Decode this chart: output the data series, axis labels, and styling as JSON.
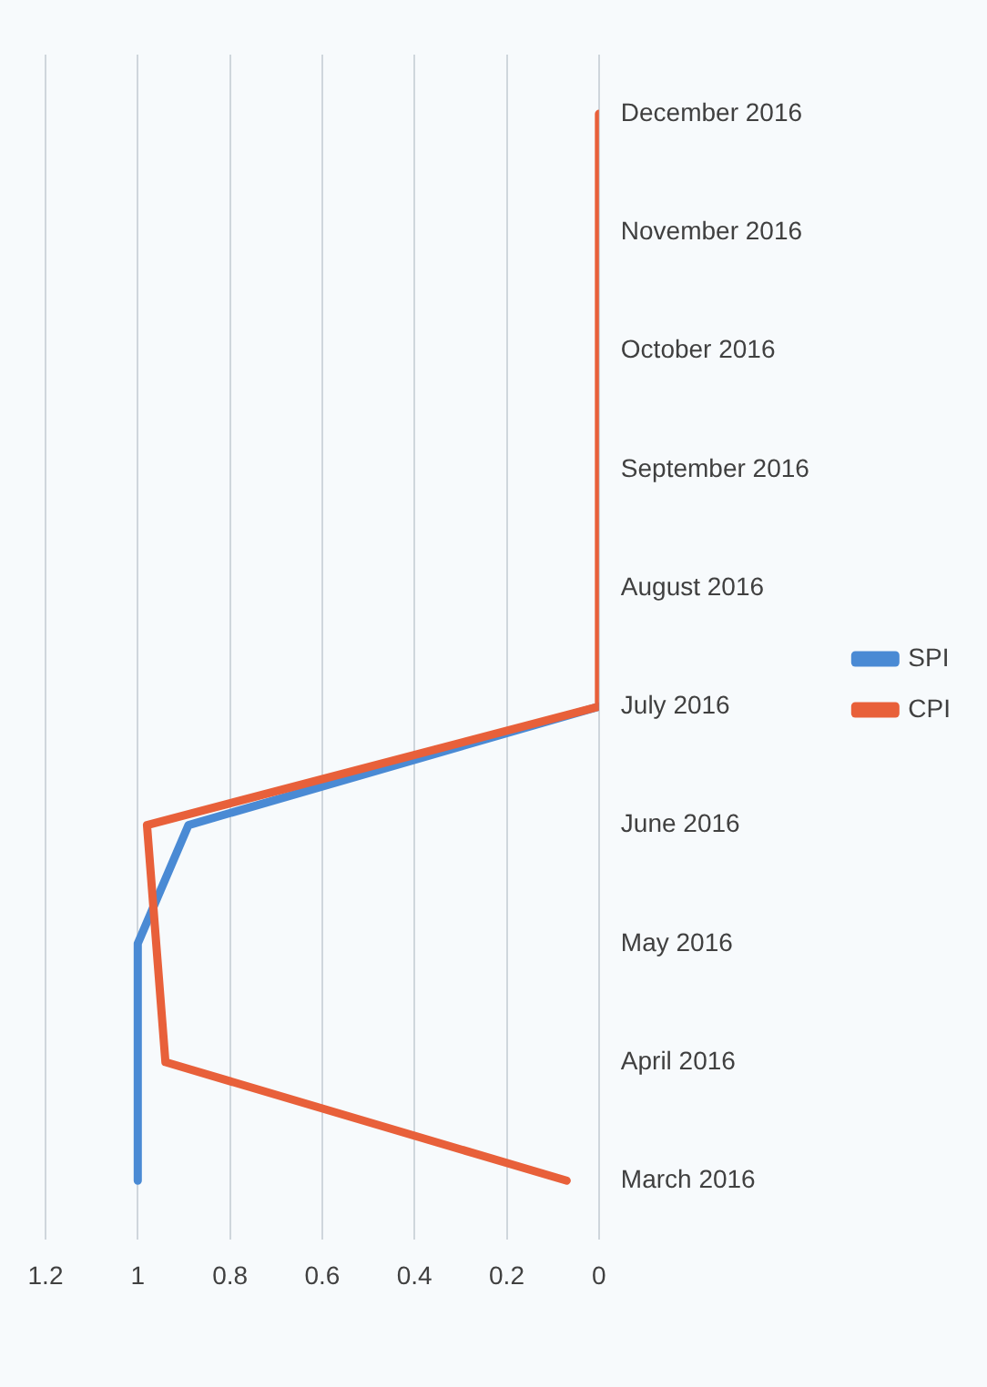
{
  "chart_data": {
    "type": "line",
    "orientation": "horizontal",
    "categories": [
      "December 2016",
      "November 2016",
      "October 2016",
      "September 2016",
      "August 2016",
      "July 2016",
      "June 2016",
      "May 2016",
      "April 2016",
      "March 2016"
    ],
    "series": [
      {
        "name": "SPI",
        "color": "#4a8ad4",
        "values": [
          null,
          null,
          null,
          null,
          null,
          0,
          0.89,
          1.0,
          1.0,
          1.0
        ]
      },
      {
        "name": "CPI",
        "color": "#e8603a",
        "values": [
          0,
          0,
          0,
          0,
          0,
          0,
          0.98,
          0.96,
          0.94,
          0.07
        ]
      }
    ],
    "xlim": [
      1.2,
      0
    ],
    "xticks": [
      1.2,
      1,
      0.8,
      0.6,
      0.4,
      0.2,
      0
    ],
    "grid": "x",
    "legend": "right",
    "marker": "none",
    "line_style": "solid"
  }
}
